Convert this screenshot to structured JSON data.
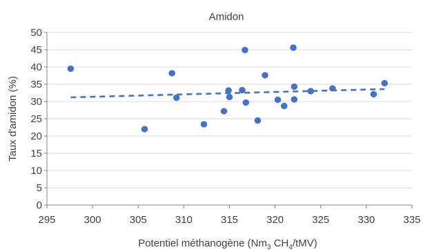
{
  "chart_data": {
    "type": "scatter",
    "title": "Amidon",
    "xlabel": {
      "base": "Potentiel méthanogène (Nm",
      "sub1": "3",
      "mid": " CH",
      "sub2": "4",
      "tail": "/tMV)"
    },
    "ylabel": "Taux d'amidon (%)",
    "xlim": [
      295,
      335
    ],
    "ylim": [
      0,
      50
    ],
    "xticks": [
      295,
      300,
      305,
      310,
      315,
      320,
      325,
      330,
      335
    ],
    "yticks": [
      0,
      5,
      10,
      15,
      20,
      25,
      30,
      35,
      40,
      45,
      50
    ],
    "grid": true,
    "series": [
      {
        "points": [
          {
            "x": 297.6,
            "y": 39.5
          },
          {
            "x": 305.7,
            "y": 22.0
          },
          {
            "x": 308.7,
            "y": 38.2
          },
          {
            "x": 309.2,
            "y": 31.1
          },
          {
            "x": 312.2,
            "y": 23.4
          },
          {
            "x": 314.4,
            "y": 27.2
          },
          {
            "x": 314.9,
            "y": 33.2
          },
          {
            "x": 315.0,
            "y": 31.3
          },
          {
            "x": 316.4,
            "y": 33.3
          },
          {
            "x": 316.7,
            "y": 44.9
          },
          {
            "x": 316.8,
            "y": 29.7
          },
          {
            "x": 318.1,
            "y": 24.5
          },
          {
            "x": 318.9,
            "y": 37.6
          },
          {
            "x": 320.3,
            "y": 30.5
          },
          {
            "x": 321.0,
            "y": 28.7
          },
          {
            "x": 322.0,
            "y": 45.6
          },
          {
            "x": 322.1,
            "y": 34.3
          },
          {
            "x": 322.1,
            "y": 30.6
          },
          {
            "x": 323.9,
            "y": 33.0
          },
          {
            "x": 326.3,
            "y": 33.8
          },
          {
            "x": 330.8,
            "y": 32.1
          },
          {
            "x": 332.0,
            "y": 35.3
          }
        ]
      }
    ],
    "trendline": {
      "style": "dashed",
      "x": [
        297.6,
        332.0
      ],
      "y": [
        31.2,
        33.6
      ]
    },
    "colors": {
      "points": "#4472c4",
      "trendline": "#4472c4",
      "grid": "#d9d9d9",
      "axis": "#808080",
      "text": "#404040"
    }
  }
}
